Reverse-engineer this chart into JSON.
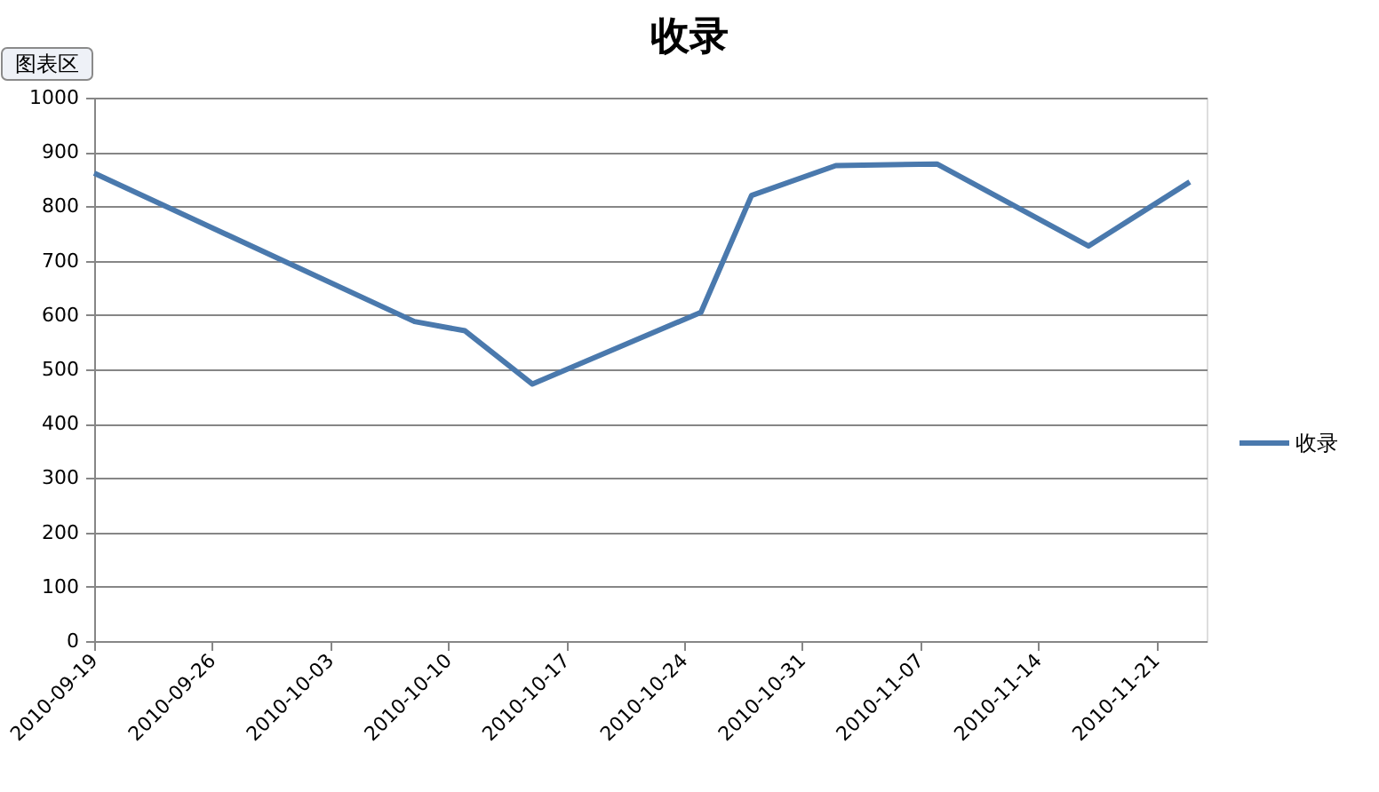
{
  "chart_data": {
    "type": "line",
    "title": "收录",
    "x": [
      "2010-09-19",
      "2010-10-08",
      "2010-10-11",
      "2010-10-15",
      "2010-10-25",
      "2010-10-28",
      "2010-11-02",
      "2010-11-08",
      "2010-11-17",
      "2010-11-23"
    ],
    "series": [
      {
        "name": "收录",
        "color": "#4a79ad",
        "values": [
          861,
          588,
          571,
          473,
          605,
          820,
          875,
          878,
          727,
          845
        ]
      }
    ],
    "xlim": [
      "2010-09-19",
      "2010-11-24"
    ],
    "xticks": [
      "2010-09-19",
      "2010-09-26",
      "2010-10-03",
      "2010-10-10",
      "2010-10-17",
      "2010-10-24",
      "2010-10-31",
      "2010-11-07",
      "2010-11-14",
      "2010-11-21"
    ],
    "ylim": [
      0,
      1000
    ],
    "yticks": [
      0,
      100,
      200,
      300,
      400,
      500,
      600,
      700,
      800,
      900,
      1000
    ],
    "grid": "y",
    "legend": "right",
    "line_style": "solid",
    "annotations": [
      "图表区"
    ]
  }
}
